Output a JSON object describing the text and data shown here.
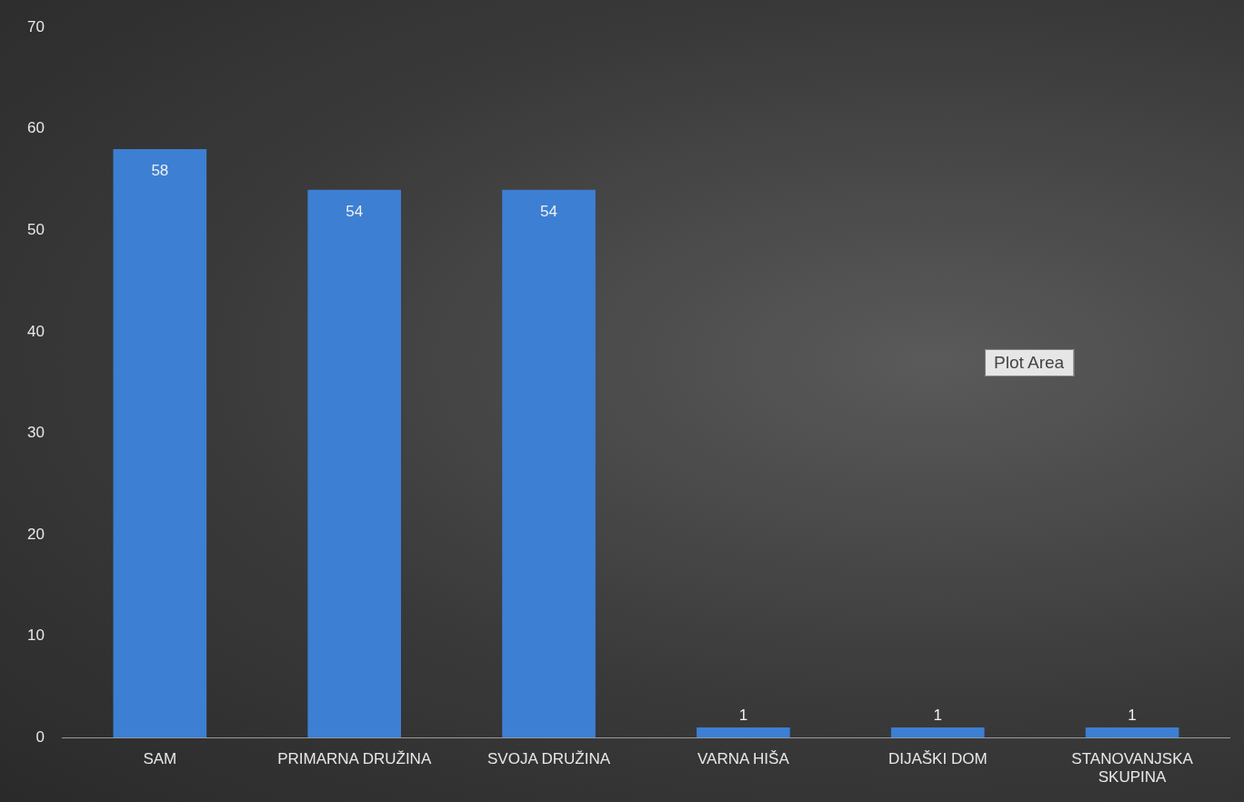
{
  "chart_data": {
    "type": "bar",
    "categories": [
      "SAM",
      "PRIMARNA DRUŽINA",
      "SVOJA DRUŽINA",
      "VARNA HIŠA",
      "DIJAŠKI DOM",
      "STANOVANJSKA SKUPINA"
    ],
    "values": [
      58,
      54,
      54,
      1,
      1,
      1
    ],
    "color": "#3d7fd3",
    "ylim": [
      0,
      70
    ],
    "yticks": [
      0,
      10,
      20,
      30,
      40,
      50,
      60,
      70
    ],
    "grid": false,
    "legend": false,
    "data_labels": true,
    "annotations": [
      "Plot Area"
    ]
  }
}
